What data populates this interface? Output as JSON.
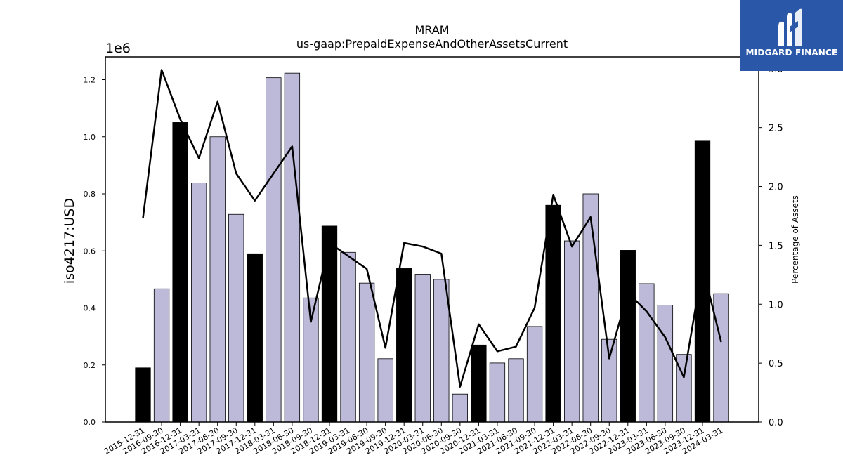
{
  "chart_data": {
    "type": "bar",
    "title": "MRAM",
    "subtitle": "us-gaap:PrepaidExpenseAndOtherAssetsCurrent",
    "ylabel": "iso4217:USD",
    "y_scale_label": "1e6",
    "y2label": "Percentage of Assets",
    "ylim": [
      0,
      1.28
    ],
    "y2lim": [
      0,
      3.1
    ],
    "y_ticks": [
      "0.0",
      "0.2",
      "0.4",
      "0.6",
      "0.8",
      "1.0",
      "1.2"
    ],
    "y2_ticks": [
      "0.0",
      "0.5",
      "1.0",
      "1.5",
      "2.0",
      "2.5",
      "3.0"
    ],
    "categories": [
      "2015-12-31",
      "2016-09-30",
      "2016-12-31",
      "2017-03-31",
      "2017-06-30",
      "2017-09-30",
      "2017-12-31",
      "2018-03-31",
      "2018-06-30",
      "2018-09-30",
      "2018-12-31",
      "2019-03-31",
      "2019-06-30",
      "2019-09-30",
      "2019-12-31",
      "2020-03-31",
      "2020-06-30",
      "2020-09-30",
      "2020-12-31",
      "2021-03-31",
      "2021-06-30",
      "2021-09-30",
      "2021-12-31",
      "2022-03-31",
      "2022-06-30",
      "2022-09-30",
      "2022-12-31",
      "2023-03-31",
      "2023-06-30",
      "2023-09-30",
      "2023-12-31",
      "2024-03-31"
    ],
    "series": [
      {
        "kind": "bar",
        "values": [
          0.19,
          0.467,
          1.05,
          0.838,
          1.0,
          0.728,
          0.59,
          1.207,
          1.223,
          0.435,
          0.687,
          0.595,
          0.487,
          0.222,
          0.538,
          0.518,
          0.5,
          0.098,
          0.27,
          0.207,
          0.222,
          0.335,
          0.76,
          0.635,
          0.8,
          0.29,
          0.602,
          0.485,
          0.41,
          0.237,
          0.985,
          0.45
        ],
        "highlight": [
          true,
          false,
          true,
          false,
          false,
          false,
          true,
          false,
          false,
          false,
          true,
          false,
          false,
          false,
          true,
          false,
          false,
          false,
          true,
          false,
          false,
          false,
          true,
          false,
          false,
          false,
          true,
          false,
          false,
          false,
          true,
          false
        ],
        "color": "#bcb9d9",
        "highlight_color": "#000000"
      },
      {
        "kind": "line",
        "axis": "right",
        "values": [
          1.73,
          2.99,
          2.57,
          2.24,
          2.72,
          2.11,
          1.88,
          2.11,
          2.34,
          0.85,
          1.52,
          1.41,
          1.3,
          0.63,
          1.52,
          1.49,
          1.43,
          0.3,
          0.83,
          0.6,
          0.64,
          0.97,
          1.93,
          1.49,
          1.74,
          0.54,
          1.1,
          0.94,
          0.72,
          0.38,
          1.32,
          0.68
        ],
        "color": "#000000"
      }
    ],
    "grid": false,
    "legend": "none"
  },
  "logo": {
    "text": "MIDGARD FINANCE",
    "background": "#2a57a8"
  }
}
